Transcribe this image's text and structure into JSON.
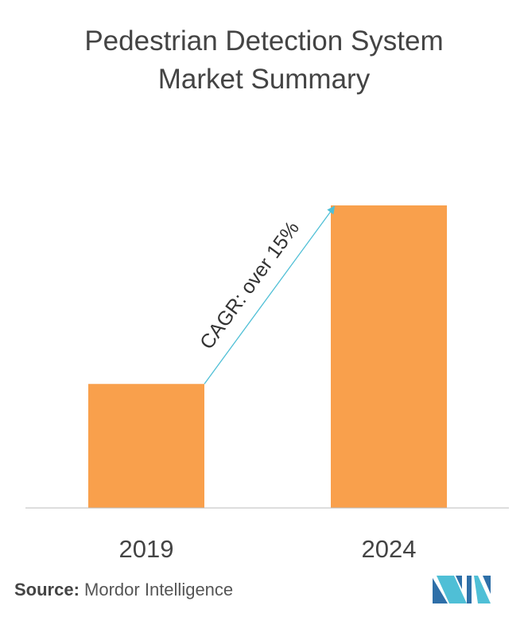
{
  "title_lines": [
    "Pedestrian Detection System",
    "Market Summary"
  ],
  "chart_data": {
    "type": "bar",
    "categories": [
      "2019",
      "2024"
    ],
    "values": [
      1.0,
      2.44
    ],
    "annotation": "CAGR: over 15%",
    "grid": false,
    "legend": "none",
    "bar_color": "#F9A04C",
    "arrow_color": "#4FBFD6",
    "axis_color": "#BBBBBB"
  },
  "source": {
    "label": "Source:",
    "text": "Mordor Intelligence"
  },
  "logo": {
    "name": "mordor-intelligence-logo",
    "colors": [
      "#2E6FA8",
      "#4FBFD6"
    ]
  }
}
